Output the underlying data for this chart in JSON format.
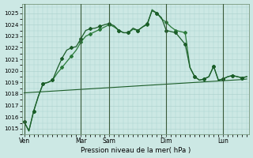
{
  "background_color": "#cce8e4",
  "grid_color": "#aad0cc",
  "line_color_dark": "#1a5c28",
  "line_color_mid": "#2a7a3a",
  "title": "Pression niveau de la mer( hPa )",
  "ylim": [
    1014.5,
    1025.8
  ],
  "yticks": [
    1015,
    1016,
    1017,
    1018,
    1019,
    1020,
    1021,
    1022,
    1023,
    1024,
    1025
  ],
  "day_labels": [
    "Ven",
    "Mar",
    "Sam",
    "Dim",
    "Lun"
  ],
  "day_positions": [
    0,
    12,
    18,
    30,
    42
  ],
  "num_points": 48,
  "series1_x": [
    0,
    1,
    2,
    3,
    4,
    5,
    6,
    7,
    8,
    9,
    10,
    11,
    12,
    13,
    14,
    15,
    16,
    17,
    18,
    19,
    20,
    21,
    22,
    23,
    24,
    25,
    26,
    27,
    28,
    29,
    30,
    31,
    32,
    33,
    34,
    35,
    36,
    37,
    38,
    39,
    40,
    41,
    42,
    43,
    44,
    45,
    46,
    47
  ],
  "series1": [
    1015.6,
    1014.8,
    1016.5,
    1017.8,
    1018.9,
    1019.0,
    1019.2,
    1020.2,
    1021.1,
    1021.8,
    1022.0,
    1022.1,
    1022.8,
    1023.5,
    1023.65,
    1023.7,
    1023.85,
    1024.0,
    1024.1,
    1023.9,
    1023.5,
    1023.3,
    1023.3,
    1023.7,
    1023.5,
    1023.8,
    1024.1,
    1025.2,
    1025.0,
    1024.6,
    1023.5,
    1023.4,
    1023.3,
    1022.8,
    1022.3,
    1020.3,
    1019.5,
    1019.2,
    1019.3,
    1019.5,
    1020.4,
    1019.2,
    1019.3,
    1019.5,
    1019.6,
    1019.5,
    1019.4,
    1019.5
  ],
  "series2_x": [
    0,
    1,
    2,
    3,
    4,
    5,
    6,
    7,
    8,
    9,
    10,
    11,
    12,
    13,
    14,
    15,
    16,
    17,
    18,
    19,
    20,
    21,
    22,
    23,
    24,
    25,
    26,
    27,
    28,
    29,
    30,
    31,
    32,
    33,
    34,
    35,
    36,
    37,
    38,
    39,
    40,
    41,
    42,
    43,
    44,
    45,
    46,
    47
  ],
  "series2": [
    1015.6,
    1014.8,
    1016.5,
    1017.8,
    1018.9,
    1019.0,
    1019.2,
    1019.8,
    1020.3,
    1020.8,
    1021.3,
    1021.8,
    1022.5,
    1023.0,
    1023.2,
    1023.4,
    1023.6,
    1023.8,
    1024.0,
    1023.8,
    1023.5,
    1023.3,
    1023.3,
    1023.6,
    1023.5,
    1023.8,
    1024.0,
    1025.3,
    1025.0,
    1024.5,
    1024.2,
    1023.8,
    1023.5,
    1023.4,
    1023.3,
    1020.3,
    1019.5,
    1019.2,
    1019.3,
    1019.5,
    1020.4,
    1019.2,
    1019.3,
    1019.5,
    1019.6,
    1019.5,
    1019.4,
    1019.5
  ],
  "series3_x": [
    0,
    2,
    4,
    6,
    8,
    10,
    12,
    14,
    16,
    18,
    20,
    22,
    24,
    26,
    28,
    30,
    32,
    34,
    36,
    38,
    40,
    42,
    44,
    46,
    47
  ],
  "series3": [
    1018.1,
    1018.15,
    1018.2,
    1018.25,
    1018.3,
    1018.35,
    1018.4,
    1018.45,
    1018.5,
    1018.55,
    1018.6,
    1018.65,
    1018.7,
    1018.75,
    1018.8,
    1018.85,
    1018.9,
    1018.95,
    1019.0,
    1019.05,
    1019.1,
    1019.15,
    1019.2,
    1019.25,
    1019.3
  ]
}
